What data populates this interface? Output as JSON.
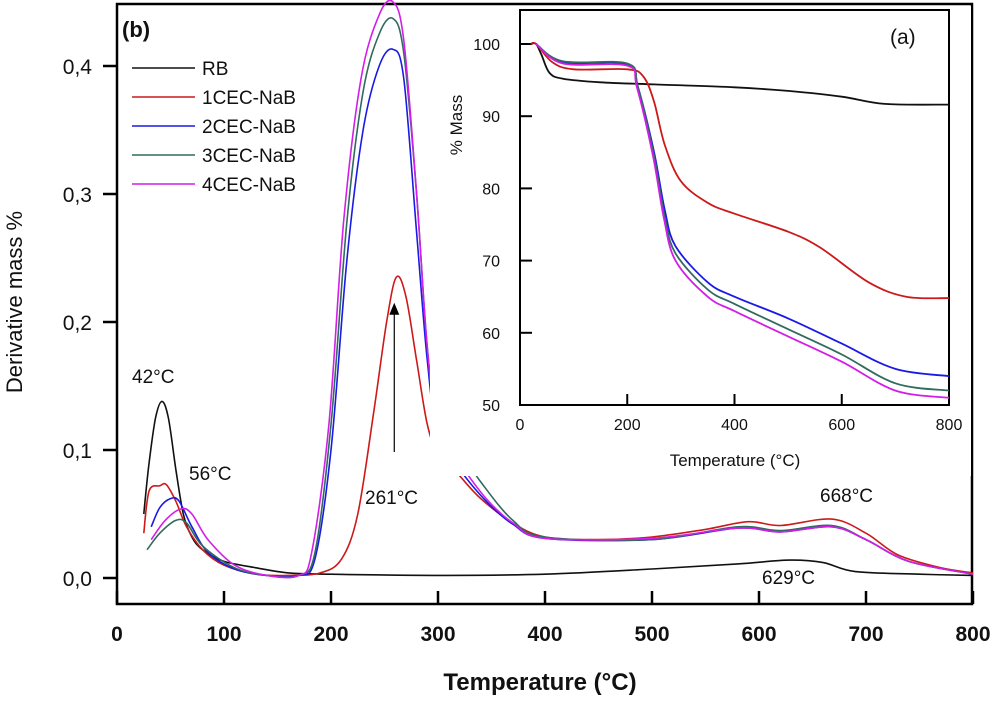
{
  "chart_data": [
    {
      "id": "b",
      "type": "line",
      "panel_label": "(b)",
      "title": "",
      "xlabel": "Temperature (°C)",
      "ylabel": "Derivative mass %",
      "xlim": [
        0,
        800
      ],
      "ylim": [
        -0.02,
        0.455
      ],
      "xticks": [
        0,
        100,
        200,
        300,
        400,
        500,
        600,
        700,
        800
      ],
      "xtick_labels": [
        "0",
        "100",
        "200",
        "300",
        "400",
        "500",
        "600",
        "700",
        "800"
      ],
      "yticks": [
        0,
        0.1,
        0.2,
        0.3,
        0.4
      ],
      "ytick_labels": [
        "0,0",
        "0,1",
        "0,2",
        "0,3",
        "0,4"
      ],
      "legend_position": "top-left",
      "grid": false,
      "series": [
        {
          "name": "RB",
          "color": "#111111",
          "points": [
            [
              25,
              0.05
            ],
            [
              30,
              0.09
            ],
            [
              36,
              0.125
            ],
            [
              42,
              0.138
            ],
            [
              48,
              0.125
            ],
            [
              55,
              0.085
            ],
            [
              62,
              0.05
            ],
            [
              70,
              0.032
            ],
            [
              80,
              0.022
            ],
            [
              100,
              0.013
            ],
            [
              130,
              0.008
            ],
            [
              160,
              0.004
            ],
            [
              200,
              0.003
            ],
            [
              300,
              0.002
            ],
            [
              400,
              0.003
            ],
            [
              500,
              0.007
            ],
            [
              580,
              0.011
            ],
            [
              629,
              0.014
            ],
            [
              660,
              0.012
            ],
            [
              690,
              0.005
            ],
            [
              750,
              0.003
            ],
            [
              800,
              0.002
            ]
          ]
        },
        {
          "name": "1CEC-NaB",
          "color": "#cc1a1a",
          "points": [
            [
              25,
              0.035
            ],
            [
              30,
              0.068
            ],
            [
              40,
              0.072
            ],
            [
              46,
              0.073
            ],
            [
              55,
              0.06
            ],
            [
              65,
              0.04
            ],
            [
              80,
              0.022
            ],
            [
              100,
              0.01
            ],
            [
              130,
              0.003
            ],
            [
              160,
              0.002
            ],
            [
              190,
              0.004
            ],
            [
              210,
              0.015
            ],
            [
              225,
              0.05
            ],
            [
              240,
              0.13
            ],
            [
              252,
              0.2
            ],
            [
              261,
              0.235
            ],
            [
              270,
              0.22
            ],
            [
              280,
              0.17
            ],
            [
              290,
              0.12
            ],
            [
              300,
              0.098
            ],
            [
              320,
              0.08
            ],
            [
              340,
              0.062
            ],
            [
              370,
              0.043
            ],
            [
              400,
              0.032
            ],
            [
              450,
              0.03
            ],
            [
              500,
              0.032
            ],
            [
              550,
              0.038
            ],
            [
              590,
              0.044
            ],
            [
              620,
              0.041
            ],
            [
              668,
              0.046
            ],
            [
              700,
              0.035
            ],
            [
              730,
              0.018
            ],
            [
              770,
              0.008
            ],
            [
              800,
              0.004
            ]
          ]
        },
        {
          "name": "2CEC-NaB",
          "color": "#1a1ae6",
          "points": [
            [
              32,
              0.04
            ],
            [
              40,
              0.055
            ],
            [
              50,
              0.062
            ],
            [
              58,
              0.06
            ],
            [
              70,
              0.04
            ],
            [
              85,
              0.02
            ],
            [
              110,
              0.007
            ],
            [
              140,
              0.002
            ],
            [
              170,
              0.002
            ],
            [
              185,
              0.015
            ],
            [
              200,
              0.1
            ],
            [
              215,
              0.25
            ],
            [
              230,
              0.35
            ],
            [
              245,
              0.4
            ],
            [
              258,
              0.413
            ],
            [
              268,
              0.39
            ],
            [
              280,
              0.27
            ],
            [
              290,
              0.17
            ],
            [
              300,
              0.11
            ],
            [
              320,
              0.085
            ],
            [
              345,
              0.06
            ],
            [
              370,
              0.042
            ],
            [
              400,
              0.031
            ],
            [
              500,
              0.03
            ],
            [
              580,
              0.039
            ],
            [
              620,
              0.036
            ],
            [
              668,
              0.04
            ],
            [
              700,
              0.03
            ],
            [
              740,
              0.013
            ],
            [
              800,
              0.003
            ]
          ]
        },
        {
          "name": "3CEC-NaB",
          "color": "#2f6b5e",
          "points": [
            [
              28,
              0.022
            ],
            [
              40,
              0.035
            ],
            [
              55,
              0.045
            ],
            [
              65,
              0.043
            ],
            [
              80,
              0.025
            ],
            [
              110,
              0.008
            ],
            [
              140,
              0.002
            ],
            [
              170,
              0.002
            ],
            [
              185,
              0.02
            ],
            [
              200,
              0.12
            ],
            [
              215,
              0.28
            ],
            [
              230,
              0.38
            ],
            [
              245,
              0.425
            ],
            [
              258,
              0.437
            ],
            [
              268,
              0.41
            ],
            [
              280,
              0.3
            ],
            [
              290,
              0.18
            ],
            [
              300,
              0.12
            ],
            [
              320,
              0.1
            ],
            [
              340,
              0.075
            ],
            [
              370,
              0.045
            ],
            [
              400,
              0.032
            ],
            [
              500,
              0.03
            ],
            [
              580,
              0.04
            ],
            [
              620,
              0.037
            ],
            [
              668,
              0.041
            ],
            [
              700,
              0.03
            ],
            [
              740,
              0.013
            ],
            [
              800,
              0.003
            ]
          ]
        },
        {
          "name": "4CEC-NaB",
          "color": "#d21ee6",
          "points": [
            [
              32,
              0.03
            ],
            [
              45,
              0.045
            ],
            [
              60,
              0.054
            ],
            [
              70,
              0.05
            ],
            [
              85,
              0.03
            ],
            [
              110,
              0.01
            ],
            [
              140,
              0.002
            ],
            [
              170,
              0.002
            ],
            [
              182,
              0.02
            ],
            [
              198,
              0.12
            ],
            [
              212,
              0.28
            ],
            [
              228,
              0.39
            ],
            [
              245,
              0.44
            ],
            [
              258,
              0.45
            ],
            [
              268,
              0.42
            ],
            [
              280,
              0.3
            ],
            [
              290,
              0.18
            ],
            [
              300,
              0.115
            ],
            [
              320,
              0.09
            ],
            [
              345,
              0.062
            ],
            [
              370,
              0.043
            ],
            [
              400,
              0.031
            ],
            [
              500,
              0.031
            ],
            [
              580,
              0.039
            ],
            [
              620,
              0.036
            ],
            [
              668,
              0.04
            ],
            [
              700,
              0.03
            ],
            [
              740,
              0.013
            ],
            [
              800,
              0.003
            ]
          ]
        }
      ],
      "annotations": [
        {
          "text": "42°C",
          "x": 42,
          "y": 0.155
        },
        {
          "text": "56°C",
          "x": 56,
          "y": 0.08
        },
        {
          "text": "261°C",
          "x": 261,
          "y": 0.06,
          "arrow_to": [
            261,
            0.215
          ]
        },
        {
          "text": "668°C",
          "x": 668,
          "y": 0.063
        },
        {
          "text": "629°C",
          "x": 629,
          "y": 0.0
        }
      ]
    },
    {
      "id": "a",
      "type": "line",
      "panel_label": "(a)",
      "title": "",
      "xlabel": "Temperature (°C)",
      "ylabel": "% Mass",
      "xlim": [
        0,
        800
      ],
      "ylim": [
        50,
        104
      ],
      "xticks": [
        0,
        200,
        400,
        600,
        800
      ],
      "xtick_labels": [
        "0",
        "200",
        "400",
        "600",
        "800"
      ],
      "yticks": [
        50,
        60,
        70,
        80,
        90,
        100
      ],
      "ytick_labels": [
        "50",
        "60",
        "70",
        "80",
        "90",
        "100"
      ],
      "grid": false,
      "series": [
        {
          "name": "RB",
          "color": "#111111",
          "points": [
            [
              20,
              100
            ],
            [
              30,
              100
            ],
            [
              40,
              98.5
            ],
            [
              55,
              96
            ],
            [
              80,
              95.2
            ],
            [
              150,
              94.7
            ],
            [
              250,
              94.4
            ],
            [
              400,
              94
            ],
            [
              500,
              93.5
            ],
            [
              600,
              92.7
            ],
            [
              680,
              91.7
            ],
            [
              800,
              91.6
            ]
          ]
        },
        {
          "name": "1CEC-NaB",
          "color": "#cc1a1a",
          "points": [
            [
              20,
              100
            ],
            [
              30,
              100
            ],
            [
              60,
              97.5
            ],
            [
              100,
              96.5
            ],
            [
              200,
              96.5
            ],
            [
              230,
              95.5
            ],
            [
              250,
              92
            ],
            [
              270,
              86
            ],
            [
              300,
              81
            ],
            [
              350,
              78
            ],
            [
              400,
              76.5
            ],
            [
              500,
              74
            ],
            [
              560,
              71.8
            ],
            [
              650,
              67
            ],
            [
              720,
              65
            ],
            [
              800,
              64.8
            ]
          ]
        },
        {
          "name": "2CEC-NaB",
          "color": "#1a1ae6",
          "points": [
            [
              30,
              100
            ],
            [
              80,
              97.5
            ],
            [
              200,
              97.2
            ],
            [
              220,
              94
            ],
            [
              250,
              85
            ],
            [
              270,
              77
            ],
            [
              290,
              72
            ],
            [
              350,
              67
            ],
            [
              400,
              65
            ],
            [
              500,
              62
            ],
            [
              600,
              58.5
            ],
            [
              700,
              55
            ],
            [
              800,
              54
            ]
          ]
        },
        {
          "name": "3CEC-NaB",
          "color": "#2f6b5e",
          "points": [
            [
              30,
              100
            ],
            [
              80,
              97.6
            ],
            [
              200,
              97.3
            ],
            [
              220,
              94
            ],
            [
              250,
              84.5
            ],
            [
              270,
              76
            ],
            [
              290,
              71
            ],
            [
              350,
              66
            ],
            [
              400,
              64
            ],
            [
              500,
              60.5
            ],
            [
              600,
              57
            ],
            [
              700,
              53
            ],
            [
              800,
              52
            ]
          ]
        },
        {
          "name": "4CEC-NaB",
          "color": "#d21ee6",
          "points": [
            [
              30,
              100
            ],
            [
              80,
              97.3
            ],
            [
              200,
              97
            ],
            [
              218,
              94
            ],
            [
              248,
              84.5
            ],
            [
              268,
              76
            ],
            [
              290,
              70
            ],
            [
              350,
              65
            ],
            [
              400,
              63
            ],
            [
              500,
              59.5
            ],
            [
              600,
              56
            ],
            [
              700,
              52
            ],
            [
              800,
              51
            ]
          ]
        }
      ]
    }
  ]
}
